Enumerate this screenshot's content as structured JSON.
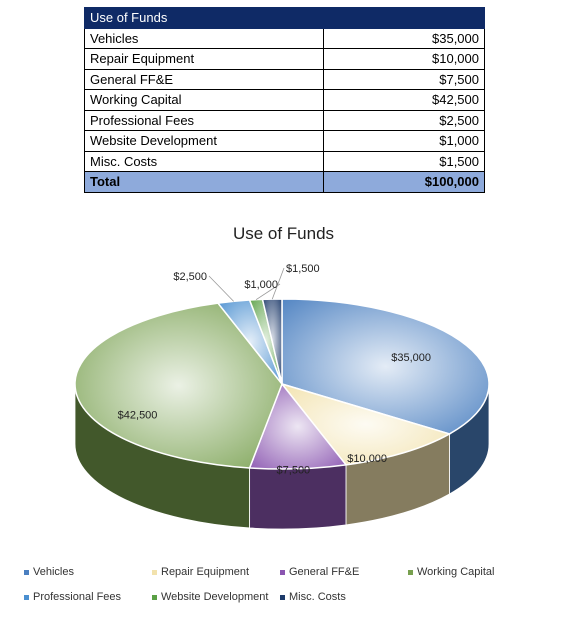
{
  "table": {
    "header": "Use of Funds",
    "rows": [
      {
        "label": "Vehicles",
        "amount": "$35,000"
      },
      {
        "label": "Repair Equipment",
        "amount": "$10,000"
      },
      {
        "label": "General FF&E",
        "amount": "$7,500"
      },
      {
        "label": "Working Capital",
        "amount": "$42,500"
      },
      {
        "label": "Professional Fees",
        "amount": "$2,500"
      },
      {
        "label": "Website Development",
        "amount": "$1,000"
      },
      {
        "label": "Misc. Costs",
        "amount": "$1,500"
      }
    ],
    "total": {
      "label": "Total",
      "amount": "$100,000"
    }
  },
  "chart_data": {
    "type": "pie",
    "title": "Use of Funds",
    "categories": [
      "Vehicles",
      "Repair Equipment",
      "General FF&E",
      "Working Capital",
      "Professional Fees",
      "Website Development",
      "Misc. Costs"
    ],
    "values": [
      35000,
      10000,
      7500,
      42500,
      2500,
      1000,
      1500
    ],
    "data_labels": [
      "$35,000",
      "$10,000",
      "$7,500",
      "$42,500",
      "$2,500",
      "$1,000",
      "$1,500"
    ],
    "colors": [
      "#4a7fc0",
      "#f2e2ad",
      "#8a55b0",
      "#78a04f",
      "#4a8fd0",
      "#5aa045",
      "#1d3a6a"
    ],
    "legend_position": "bottom",
    "style": "3d"
  }
}
